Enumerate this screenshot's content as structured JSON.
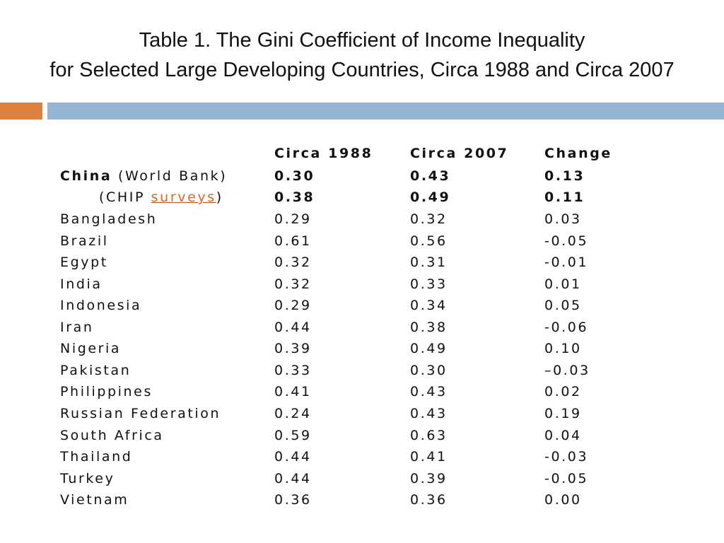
{
  "title": {
    "line1": "Table 1. The Gini Coefficient of Income Inequality",
    "line2": "for Selected Large Developing Countries, Circa 1988 and Circa 2007"
  },
  "colors": {
    "accent_orange": "#e0803f",
    "accent_blue": "#94b6d2",
    "link": "#e0661f"
  },
  "table": {
    "headers": [
      "",
      "Circa 1988",
      "Circa 2007",
      "Change"
    ],
    "china": {
      "name": "China",
      "source1": "(World Bank)",
      "values1": [
        "0.30",
        "0.43",
        "0.13"
      ],
      "source2_prefix": "(CHIP ",
      "source2_link": "surveys",
      "source2_suffix": ")",
      "values2": [
        "0.38",
        "0.49",
        "0.11"
      ]
    },
    "rows": [
      [
        "Bangladesh",
        "0.29",
        "0.32",
        "0.03"
      ],
      [
        "Brazil",
        "0.61",
        "0.56",
        "-0.05"
      ],
      [
        "Egypt",
        "0.32",
        "0.31",
        "-0.01"
      ],
      [
        "India",
        "0.32",
        "0.33",
        "0.01"
      ],
      [
        "Indonesia",
        "0.29",
        "0.34",
        "0.05"
      ],
      [
        "Iran",
        "0.44",
        "0.38",
        "-0.06"
      ],
      [
        "Nigeria",
        "0.39",
        "0.49",
        "0.10"
      ],
      [
        "Pakistan",
        "0.33",
        "0.30",
        "–0.03"
      ],
      [
        "Philippines",
        "0.41",
        "0.43",
        "0.02"
      ],
      [
        "Russian Federation",
        "0.24",
        "0.43",
        "0.19"
      ],
      [
        "South Africa",
        "0.59",
        "0.63",
        "0.04"
      ],
      [
        "Thailand",
        "0.44",
        "0.41",
        "-0.03"
      ],
      [
        "Turkey",
        "0.44",
        "0.39",
        "-0.05"
      ],
      [
        "Vietnam",
        "0.36",
        "0.36",
        "0.00"
      ]
    ]
  }
}
